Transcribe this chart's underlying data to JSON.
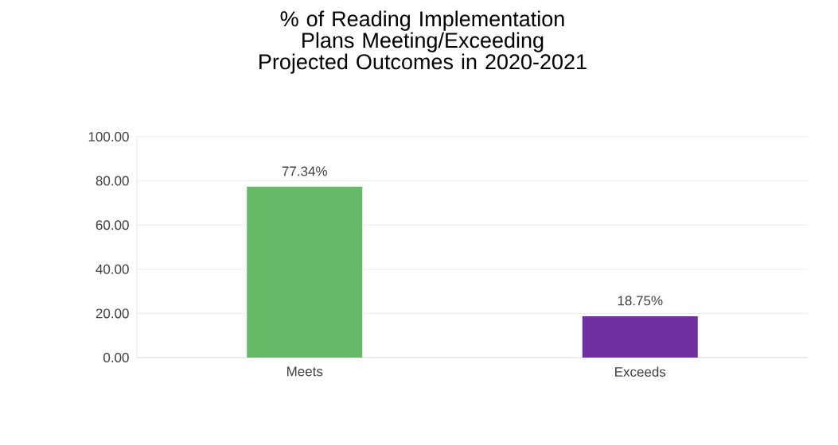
{
  "chart_data": {
    "type": "bar",
    "title": "% of Reading Implementation Plans Meeting/Exceeding Projected Outcomes in 2020-2021",
    "categories": [
      "Meets",
      "Exceeds"
    ],
    "values": [
      77.34,
      18.75
    ],
    "colors": [
      "#66b966",
      "#7030a0"
    ],
    "value_labels": [
      "77.34%",
      "18.75%"
    ],
    "ylim": [
      0,
      100
    ],
    "yticks": [
      {
        "value": 0,
        "label": "0.00"
      },
      {
        "value": 20,
        "label": "20.00"
      },
      {
        "value": 40,
        "label": "40.00"
      },
      {
        "value": 60,
        "label": "60.00"
      },
      {
        "value": 80,
        "label": "80.00"
      },
      {
        "value": 100,
        "label": "100.00"
      }
    ],
    "grid": "y"
  }
}
